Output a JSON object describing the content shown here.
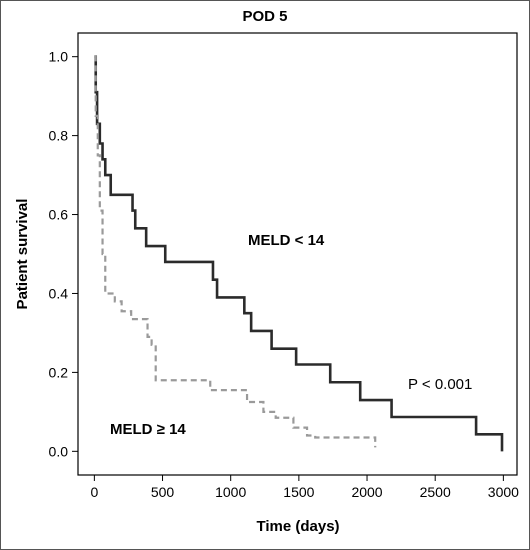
{
  "chart_data": {
    "type": "line",
    "step": true,
    "title": "POD 5",
    "xlabel": "Time (days)",
    "ylabel": "Patient survival",
    "xlim": [
      -120,
      3100
    ],
    "ylim": [
      -0.06,
      1.06
    ],
    "xticks": [
      0,
      500,
      1000,
      1500,
      2000,
      2500,
      3000
    ],
    "yticks": [
      0.0,
      0.2,
      0.4,
      0.6,
      0.8,
      1.0
    ],
    "ytick_labels": [
      "0.0",
      "0.2",
      "0.4",
      "0.6",
      "0.8",
      "1.0"
    ],
    "grid": false,
    "series": [
      {
        "name": "MELD < 14",
        "color": "#2b2b2b",
        "style": "solid",
        "points": [
          [
            0,
            1.0
          ],
          [
            10,
            0.91
          ],
          [
            20,
            0.83
          ],
          [
            40,
            0.78
          ],
          [
            60,
            0.74
          ],
          [
            80,
            0.7
          ],
          [
            120,
            0.65
          ],
          [
            280,
            0.61
          ],
          [
            300,
            0.565
          ],
          [
            380,
            0.52
          ],
          [
            520,
            0.48
          ],
          [
            870,
            0.435
          ],
          [
            900,
            0.39
          ],
          [
            1100,
            0.35
          ],
          [
            1150,
            0.305
          ],
          [
            1300,
            0.26
          ],
          [
            1480,
            0.22
          ],
          [
            1730,
            0.175
          ],
          [
            1950,
            0.13
          ],
          [
            2180,
            0.087
          ],
          [
            2800,
            0.043
          ],
          [
            2990,
            0.0
          ]
        ]
      },
      {
        "name": "MELD ≥ 14",
        "color": "#9a9a9a",
        "style": "dashed",
        "points": [
          [
            0,
            1.0
          ],
          [
            10,
            0.85
          ],
          [
            25,
            0.75
          ],
          [
            40,
            0.61
          ],
          [
            60,
            0.5
          ],
          [
            80,
            0.4
          ],
          [
            150,
            0.38
          ],
          [
            200,
            0.355
          ],
          [
            270,
            0.335
          ],
          [
            390,
            0.29
          ],
          [
            420,
            0.27
          ],
          [
            450,
            0.18
          ],
          [
            850,
            0.155
          ],
          [
            1120,
            0.125
          ],
          [
            1240,
            0.1
          ],
          [
            1330,
            0.085
          ],
          [
            1460,
            0.06
          ],
          [
            1560,
            0.04
          ],
          [
            1620,
            0.035
          ],
          [
            2060,
            0.01
          ]
        ]
      }
    ],
    "annotations": {
      "label_meld_low": "MELD < 14",
      "label_meld_high": "MELD ≥ 14",
      "p_value": "P < 0.001"
    }
  }
}
